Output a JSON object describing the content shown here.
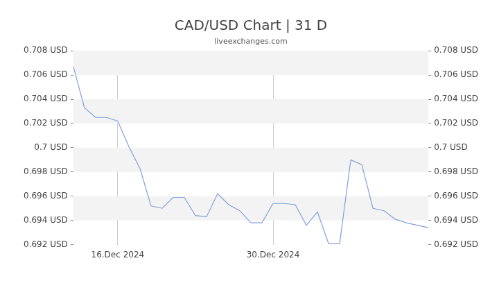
{
  "chart_data": {
    "type": "line",
    "title": "CAD/USD Chart | 31 D",
    "subtitle": "liveexchanges.com",
    "categories": [
      null,
      null,
      null,
      null,
      "16.Dec 2024",
      null,
      null,
      null,
      null,
      null,
      null,
      null,
      null,
      null,
      null,
      null,
      null,
      null,
      "30.Dec 2024",
      null,
      null,
      null,
      null,
      null,
      null,
      null,
      null,
      null,
      null,
      null,
      null,
      null,
      null
    ],
    "values": [
      0.7067,
      0.7033,
      0.7025,
      0.7025,
      0.7022,
      0.7001,
      0.6983,
      0.6952,
      0.695,
      0.6959,
      0.6959,
      0.6944,
      0.6943,
      0.6962,
      0.6953,
      0.6948,
      0.6938,
      0.6938,
      0.6954,
      0.6954,
      0.6953,
      0.6936,
      0.6947,
      0.6921,
      0.6921,
      0.699,
      0.6986,
      0.695,
      0.6948,
      0.6941,
      0.6938,
      0.6936,
      0.6934
    ],
    "color": "#829fe0",
    "ylim": [
      0.692,
      0.708
    ],
    "yticks": [
      {
        "value": 0.692,
        "label": "0.692 USD"
      },
      {
        "value": 0.694,
        "label": "0.694 USD"
      },
      {
        "value": 0.696,
        "label": "0.696 USD"
      },
      {
        "value": 0.698,
        "label": "0.698 USD"
      },
      {
        "value": 0.7,
        "label": "0.7 USD"
      },
      {
        "value": 0.702,
        "label": "0.702 USD"
      },
      {
        "value": 0.704,
        "label": "0.704 USD"
      },
      {
        "value": 0.706,
        "label": "0.706 USD"
      },
      {
        "value": 0.708,
        "label": "0.708 USD"
      }
    ],
    "y2lim": [
      0.692,
      0.708
    ],
    "y2ticks": [
      {
        "value": 0.692,
        "label": "0.692 USD"
      },
      {
        "value": 0.694,
        "label": "0.694 USD"
      },
      {
        "value": 0.696,
        "label": "0.696 USD"
      },
      {
        "value": 0.698,
        "label": "0.698 USD"
      },
      {
        "value": 0.7,
        "label": "0.7 USD"
      },
      {
        "value": 0.702,
        "label": "0.702 USD"
      },
      {
        "value": 0.704,
        "label": "0.704 USD"
      },
      {
        "value": 0.706,
        "label": "0.706 USD"
      },
      {
        "value": 0.708,
        "label": "0.708 USD"
      }
    ],
    "grid": true
  }
}
